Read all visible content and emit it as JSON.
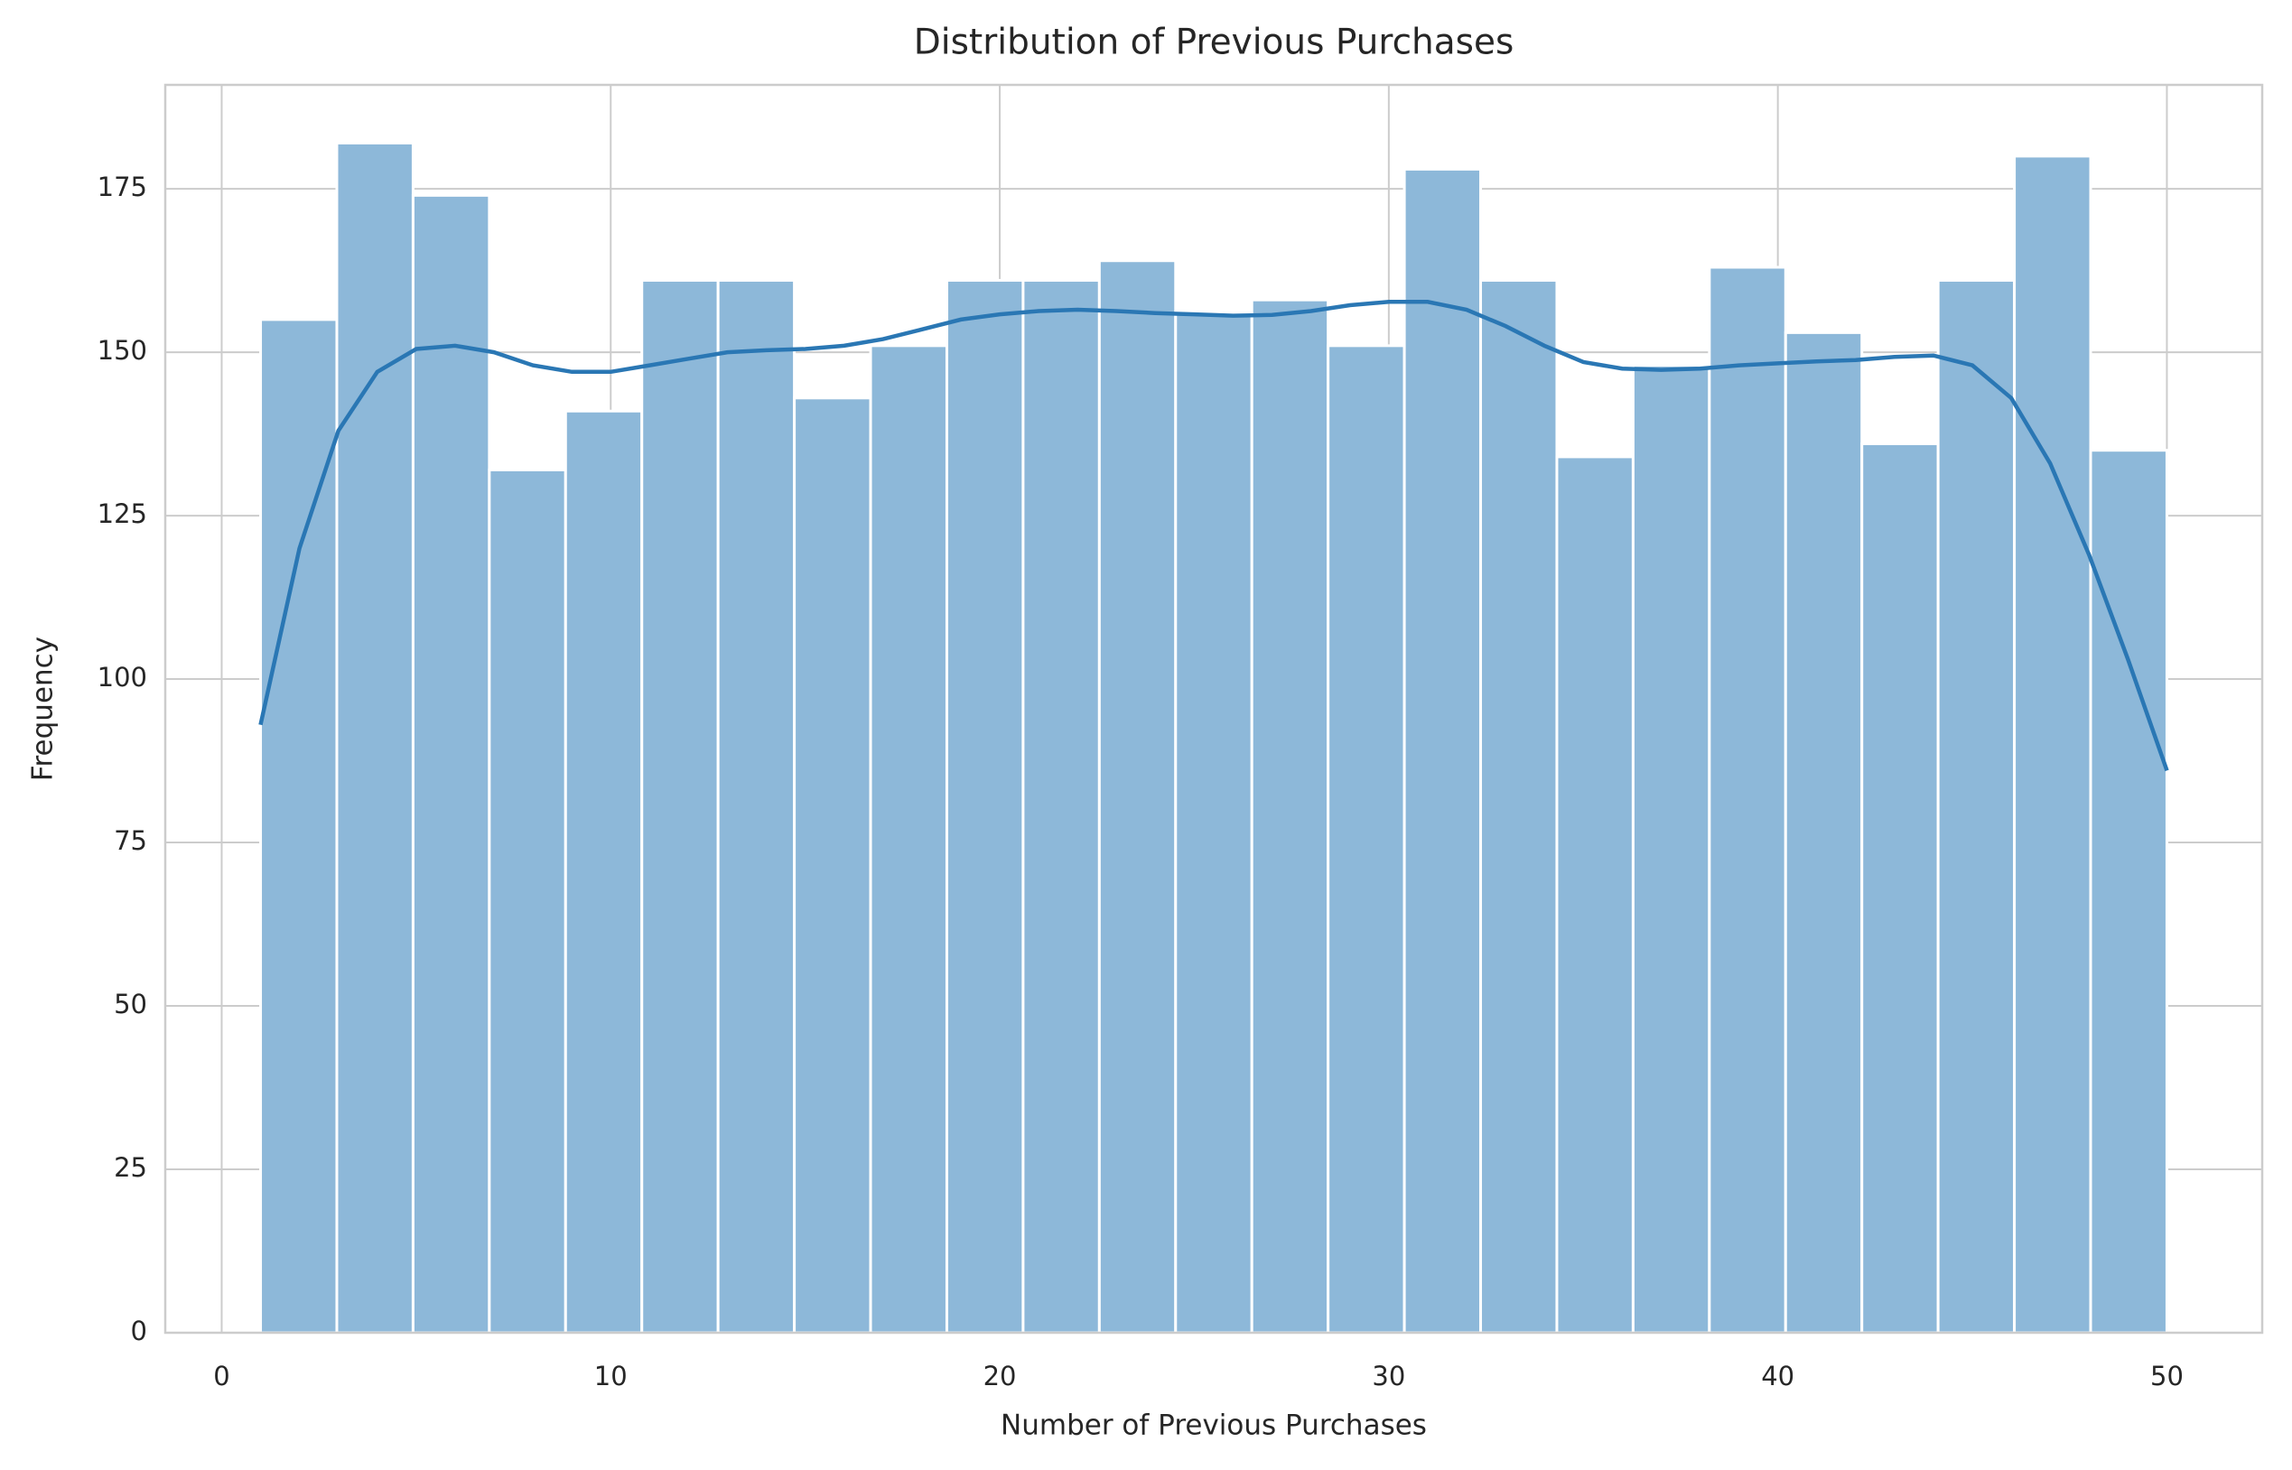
{
  "chart_data": {
    "type": "histogram",
    "title": "Distribution of Previous Purchases",
    "x_label": "Number of Previous Purchases",
    "y_label": "Frequency",
    "bins": [
      1,
      2.96,
      4.92,
      6.88,
      8.84,
      10.8,
      12.76,
      14.72,
      16.68,
      18.64,
      20.6,
      22.56,
      24.52,
      26.48,
      28.44,
      30.4,
      32.36,
      34.32,
      36.28,
      38.24,
      40.2,
      42.16,
      44.12,
      46.08,
      48.04,
      50
    ],
    "values": [
      155,
      182,
      174,
      132,
      141,
      161,
      161,
      143,
      151,
      161,
      161,
      164,
      156,
      158,
      151,
      178,
      161,
      134,
      148,
      163,
      153,
      136,
      161,
      180,
      135
    ],
    "color": "#8db8d9",
    "kde": {
      "color": "#2a77b4",
      "x": [
        1,
        2,
        3,
        4,
        5,
        6,
        7,
        8,
        9,
        10,
        11,
        12,
        13,
        14,
        15,
        16,
        17,
        18,
        19,
        20,
        21,
        22,
        23,
        24,
        25,
        26,
        27,
        28,
        29,
        30,
        31,
        32,
        33,
        34,
        35,
        36,
        37,
        38,
        39,
        40,
        41,
        42,
        43,
        44,
        45,
        46,
        47,
        48,
        49,
        50
      ],
      "values": [
        93,
        120,
        138,
        147,
        150.5,
        151,
        150,
        148,
        147,
        147,
        148,
        149,
        150,
        150.3,
        150.5,
        151,
        152,
        153.5,
        155,
        155.8,
        156.3,
        156.5,
        156.3,
        156,
        155.8,
        155.6,
        155.7,
        156.3,
        157.2,
        157.7,
        157.7,
        156.5,
        154,
        151,
        148.5,
        147.5,
        147.3,
        147.5,
        148,
        148.3,
        148.6,
        148.8,
        149.3,
        149.5,
        148,
        143,
        133,
        119,
        103,
        86
      ]
    },
    "xlim": [
      -1.45,
      52.45
    ],
    "xticks": [
      0,
      10,
      20,
      30,
      40,
      50
    ],
    "ylim": [
      0,
      190.9
    ],
    "yticks": [
      0,
      25,
      50,
      75,
      100,
      125,
      150,
      175
    ],
    "grid": true
  }
}
